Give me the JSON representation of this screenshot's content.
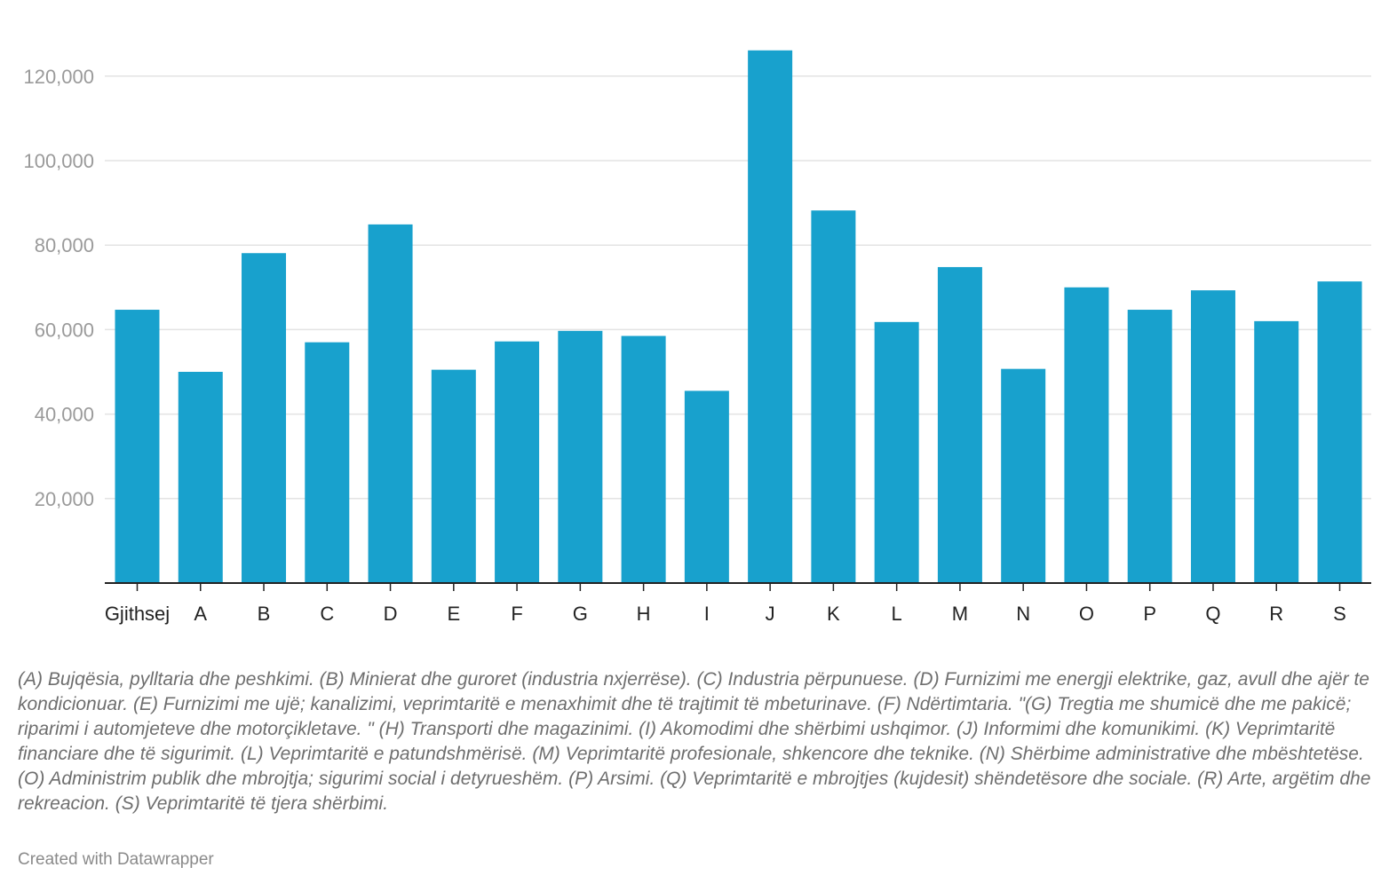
{
  "chart_data": {
    "type": "bar",
    "categories": [
      "Gjithsej",
      "A",
      "B",
      "C",
      "D",
      "E",
      "F",
      "G",
      "H",
      "I",
      "J",
      "K",
      "L",
      "M",
      "N",
      "O",
      "P",
      "Q",
      "R",
      "S"
    ],
    "values": [
      64700,
      50000,
      78100,
      57000,
      84900,
      50500,
      57200,
      59700,
      58500,
      45500,
      126100,
      88200,
      61800,
      74800,
      50700,
      70000,
      64700,
      69300,
      62000,
      71400
    ],
    "yticks": [
      20000,
      40000,
      60000,
      80000,
      100000,
      120000
    ],
    "ytick_labels": [
      "20,000",
      "40,000",
      "60,000",
      "80,000",
      "100,000",
      "120,000"
    ],
    "ylim": [
      0,
      130000
    ],
    "bar_color": "#18a1cd",
    "grid": true,
    "title": "",
    "xlabel": "",
    "ylabel": ""
  },
  "notes": "(A) Bujqësia, pylltaria dhe peshkimi. (B) Minierat dhe guroret (industria nxjerrëse). (C) Industria përpunuese. (D) Furnizimi me energji elektrike, gaz, avull dhe ajër te kondicionuar. (E) Furnizimi me ujë; kanalizimi, veprimtaritë e menaxhimit dhe të trajtimit të mbeturinave. (F) Ndërtimtaria. \"(G) Tregtia me shumicë dhe me pakicë; riparimi i automjeteve dhe motorçikletave. \" (H) Transporti dhe magazinimi. (I) Akomodimi dhe shërbimi ushqimor. (J) Informimi dhe komunikimi. (K) Veprimtaritë financiare dhe të sigurimit. (L) Veprimtaritë e patundshmërisë. (M) Veprimtaritë profesionale, shkencore dhe teknike. (N) Shërbime administrative dhe mbështetëse. (O) Administrim publik dhe mbrojtja; sigurimi social i detyrueshëm. (P) Arsimi. (Q) Veprimtaritë e mbrojtjes (kujdesit) shëndetësore dhe sociale. (R) Arte, argëtim dhe rekreacion. (S) Veprimtaritë të tjera shërbimi.",
  "credit": "Created with Datawrapper"
}
